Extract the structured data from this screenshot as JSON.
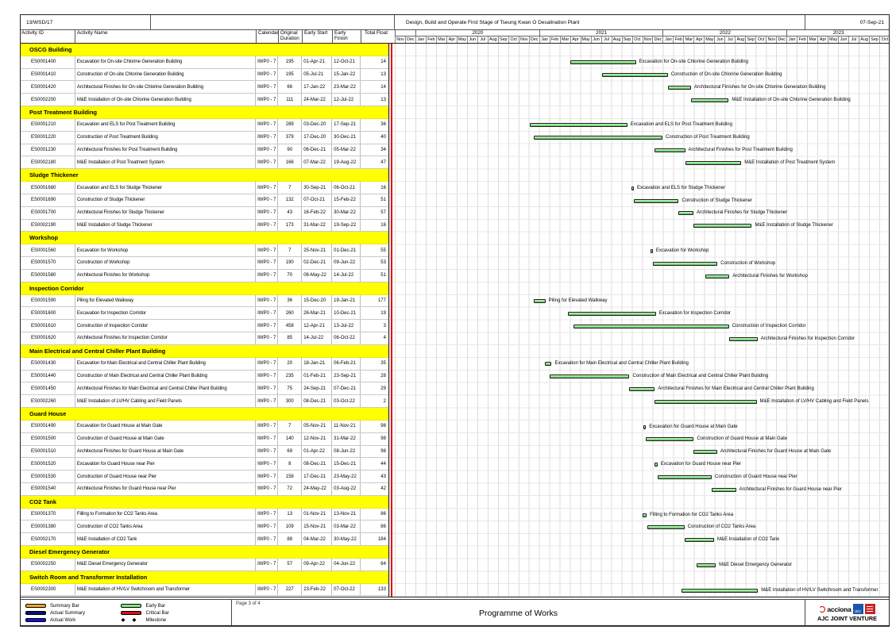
{
  "header": {
    "contract_ref": "13/WSD/17",
    "project_title": "Design, Build and Operate First Stage of Tseung Kwan O Desalination Plant",
    "print_date": "07-Sep-21"
  },
  "table": {
    "columns": [
      "Activity ID",
      "Activity Name",
      "Calendar",
      "Original Duration",
      "Early Start",
      "Early Finish",
      "Total Float"
    ]
  },
  "timescale": {
    "months": [
      "Nov",
      "Dec",
      "Jan",
      "Feb",
      "Mar",
      "Apr",
      "May",
      "Jun",
      "Jul",
      "Aug",
      "Sep",
      "Oct",
      "Nov",
      "Dec",
      "Jan",
      "Feb",
      "Mar",
      "Apr",
      "May",
      "Jun",
      "Jul",
      "Aug",
      "Sep",
      "Oct",
      "Nov",
      "Dec",
      "Jan",
      "Feb",
      "Mar",
      "Apr",
      "May",
      "Jun",
      "Jul",
      "Aug",
      "Sep",
      "Oct",
      "Nov",
      "Dec",
      "Jan",
      "Feb",
      "Mar",
      "Apr",
      "May",
      "Jun",
      "Jul",
      "Aug",
      "Sep",
      "Oct"
    ],
    "month_count": 48,
    "start": "Nov-2019",
    "years": [
      {
        "label": "",
        "span": 2
      },
      {
        "label": "2020",
        "span": 12
      },
      {
        "label": "2021",
        "span": 12
      },
      {
        "label": "2022",
        "span": 12
      },
      {
        "label": "2023",
        "span": 10
      }
    ]
  },
  "rows": [
    {
      "type": "section",
      "label": "OSCG Building"
    },
    {
      "type": "activity",
      "id": "ES0001400",
      "name": "Excavation for On-site Chlorine Generation Building",
      "calendar": "IWP0 - 7",
      "duration": "195",
      "start": "01-Apr-21",
      "finish": "12-Oct-21",
      "float": "14"
    },
    {
      "type": "activity",
      "id": "ES0001410",
      "name": "Construction of On-site Chlorine Generation Building",
      "calendar": "IWP0 - 7",
      "duration": "195",
      "start": "05-Jul-21",
      "finish": "15-Jan-22",
      "float": "13"
    },
    {
      "type": "activity",
      "id": "ES0001420",
      "name": "Architectural Finishes for On-site Chlorine Generation Building",
      "calendar": "IWP0 - 7",
      "duration": "66",
      "start": "17-Jan-22",
      "finish": "23-Mar-22",
      "float": "14"
    },
    {
      "type": "activity",
      "id": "ES0002200",
      "name": "M&E Installation of On-site Chlorine Generation Building",
      "calendar": "IWP0 - 7",
      "duration": "111",
      "start": "24-Mar-22",
      "finish": "12-Jul-22",
      "float": "13"
    },
    {
      "type": "section",
      "label": "Post Treatment Building"
    },
    {
      "type": "activity",
      "id": "ES0001210",
      "name": "Excavation and ELS for Post Treatment Building",
      "calendar": "IWP0 - 7",
      "duration": "289",
      "start": "03-Dec-20",
      "finish": "17-Sep-21",
      "float": "36"
    },
    {
      "type": "activity",
      "id": "ES0001220",
      "name": "Construction of Post Treatment Building",
      "calendar": "IWP0 - 7",
      "duration": "379",
      "start": "17-Dec-20",
      "finish": "30-Dec-21",
      "float": "40"
    },
    {
      "type": "activity",
      "id": "ES0001230",
      "name": "Architectural Finishes for Post Treatment Building",
      "calendar": "IWP0 - 7",
      "duration": "90",
      "start": "06-Dec-21",
      "finish": "05-Mar-22",
      "float": "34"
    },
    {
      "type": "activity",
      "id": "ES0002180",
      "name": "M&E Installation of Post Treatment System",
      "calendar": "IWP0 - 7",
      "duration": "166",
      "start": "07-Mar-22",
      "finish": "19-Aug-22",
      "float": "47"
    },
    {
      "type": "section",
      "label": "Sludge Thickener"
    },
    {
      "type": "activity",
      "id": "ES0001680",
      "name": "Excavation and ELS for Sludge Thickener",
      "calendar": "IWP0 - 7",
      "duration": "7",
      "start": "30-Sep-21",
      "finish": "06-Oct-21",
      "float": "16"
    },
    {
      "type": "activity",
      "id": "ES0001690",
      "name": "Construction of Sludge Thickener",
      "calendar": "IWP0 - 7",
      "duration": "132",
      "start": "07-Oct-21",
      "finish": "15-Feb-22",
      "float": "51"
    },
    {
      "type": "activity",
      "id": "ES0001700",
      "name": "Architectural Finishes for Sludge Thickener",
      "calendar": "IWP0 - 7",
      "duration": "43",
      "start": "16-Feb-22",
      "finish": "30-Mar-22",
      "float": "57"
    },
    {
      "type": "activity",
      "id": "ES0002190",
      "name": "M&E Installation of Sludge Thickener",
      "calendar": "IWP0 - 7",
      "duration": "173",
      "start": "31-Mar-22",
      "finish": "19-Sep-22",
      "float": "16"
    },
    {
      "type": "section",
      "label": "Workshop"
    },
    {
      "type": "activity",
      "id": "ES0001560",
      "name": "Excavation for Workshop",
      "calendar": "IWP0 - 7",
      "duration": "7",
      "start": "25-Nov-21",
      "finish": "01-Dec-21",
      "float": "55"
    },
    {
      "type": "activity",
      "id": "ES0001570",
      "name": "Construction of Workshop",
      "calendar": "IWP0 - 7",
      "duration": "190",
      "start": "02-Dec-21",
      "finish": "09-Jun-22",
      "float": "53"
    },
    {
      "type": "activity",
      "id": "ES0001580",
      "name": "Architectural Finishes for Workshop",
      "calendar": "IWP0 - 7",
      "duration": "70",
      "start": "06-May-22",
      "finish": "14-Jul-22",
      "float": "51"
    },
    {
      "type": "section",
      "label": "Inspection Corridor"
    },
    {
      "type": "activity",
      "id": "ES0001590",
      "name": "Piling for Elevated Walkway",
      "calendar": "IWP0 - 7",
      "duration": "36",
      "start": "15-Dec-20",
      "finish": "19-Jan-21",
      "float": "177"
    },
    {
      "type": "activity",
      "id": "ES0001600",
      "name": "Excavation for Inspection Corridor",
      "calendar": "IWP0 - 7",
      "duration": "260",
      "start": "26-Mar-21",
      "finish": "10-Dec-21",
      "float": "19"
    },
    {
      "type": "activity",
      "id": "ES0001610",
      "name": "Construction of Inspection Corridor",
      "calendar": "IWP0 - 7",
      "duration": "458",
      "start": "12-Apr-21",
      "finish": "13-Jul-22",
      "float": "3"
    },
    {
      "type": "activity",
      "id": "ES0001620",
      "name": "Architectural Finishes for Inspection Corridor",
      "calendar": "IWP0 - 7",
      "duration": "85",
      "start": "14-Jul-22",
      "finish": "06-Oct-22",
      "float": "4"
    },
    {
      "type": "section",
      "label": "Main Electrical and Central Chiller Plant Building"
    },
    {
      "type": "activity",
      "id": "ES0001430",
      "name": "Excavation for Main Electrical and Central Chiller Plant Building",
      "calendar": "IWP0 - 7",
      "duration": "20",
      "start": "18-Jan-21",
      "finish": "06-Feb-21",
      "float": "35"
    },
    {
      "type": "activity",
      "id": "ES0001440",
      "name": "Construction of Main Electrical and Central Chiller Plant Building",
      "calendar": "IWP0 - 7",
      "duration": "235",
      "start": "01-Feb-21",
      "finish": "23-Sep-21",
      "float": "28"
    },
    {
      "type": "activity",
      "id": "ES0001450",
      "name": "Architectural Finishes for Main Electrical and Central Chiller Plant Building",
      "calendar": "IWP0 - 7",
      "duration": "75",
      "start": "24-Sep-21",
      "finish": "07-Dec-21",
      "float": "29"
    },
    {
      "type": "activity",
      "id": "ES0002260",
      "name": "M&E Installation of LV/HV Cabling and Field Panels",
      "calendar": "IWP0 - 7",
      "duration": "300",
      "start": "08-Dec-21",
      "finish": "03-Oct-22",
      "float": "2"
    },
    {
      "type": "section",
      "label": "Guard House"
    },
    {
      "type": "activity",
      "id": "ES0001490",
      "name": "Excavation for Guard House at Main Gate",
      "calendar": "IWP0 - 7",
      "duration": "7",
      "start": "05-Nov-21",
      "finish": "11-Nov-21",
      "float": "98"
    },
    {
      "type": "activity",
      "id": "ES0001500",
      "name": "Construction of Guard House at Main Gate",
      "calendar": "IWP0 - 7",
      "duration": "140",
      "start": "12-Nov-21",
      "finish": "31-Mar-22",
      "float": "98"
    },
    {
      "type": "activity",
      "id": "ES0001510",
      "name": "Architectural Finishes for Guard House at Main Gate",
      "calendar": "IWP0 - 7",
      "duration": "69",
      "start": "01-Apr-22",
      "finish": "08-Jun-22",
      "float": "98"
    },
    {
      "type": "activity",
      "id": "ES0001520",
      "name": "Excavation for Guard House near Pier",
      "calendar": "IWP0 - 7",
      "duration": "8",
      "start": "08-Dec-21",
      "finish": "15-Dec-21",
      "float": "44"
    },
    {
      "type": "activity",
      "id": "ES0001530",
      "name": "Construction of Guard House near Pier",
      "calendar": "IWP0 - 7",
      "duration": "158",
      "start": "17-Dec-21",
      "finish": "23-May-22",
      "float": "43"
    },
    {
      "type": "activity",
      "id": "ES0001540",
      "name": "Architectural Finishes for Guard House near Pier",
      "calendar": "IWP0 - 7",
      "duration": "72",
      "start": "24-May-22",
      "finish": "03-Aug-22",
      "float": "42"
    },
    {
      "type": "section",
      "label": "CO2 Tank"
    },
    {
      "type": "activity",
      "id": "ES0001370",
      "name": "Filling to Formation for CO2 Tanks Area",
      "calendar": "IWP0 - 7",
      "duration": "13",
      "start": "01-Nov-21",
      "finish": "13-Nov-21",
      "float": "86"
    },
    {
      "type": "activity",
      "id": "ES0001380",
      "name": "Construction of CO2 Tanks Area",
      "calendar": "IWP0 - 7",
      "duration": "109",
      "start": "15-Nov-21",
      "finish": "03-Mar-22",
      "float": "86"
    },
    {
      "type": "activity",
      "id": "ES0002170",
      "name": "M&E Installation of CO2 Tank",
      "calendar": "IWP0 - 7",
      "duration": "88",
      "start": "04-Mar-22",
      "finish": "30-May-22",
      "float": "184"
    },
    {
      "type": "section",
      "label": "Diesel Emergency Generator"
    },
    {
      "type": "activity",
      "id": "ES0002250",
      "name": "M&E Diesel Emergency Generator",
      "calendar": "IWP0 - 7",
      "duration": "57",
      "start": "09-Apr-22",
      "finish": "04-Jun-22",
      "float": "64"
    },
    {
      "type": "section",
      "label": "Switch Room and Transformer Installation"
    },
    {
      "type": "activity",
      "id": "ES0002300",
      "name": "M&E Installation of HV/LV Switchroom and Transformer",
      "calendar": "IWP0 - 7",
      "duration": "227",
      "start": "23-Feb-22",
      "finish": "07-Oct-22",
      "float": "133"
    }
  ],
  "footer": {
    "page_label": "Page 3 of 4",
    "document_title": "Programme of Works",
    "legend": {
      "summary_bar": "Summary Bar",
      "actual_summary": "Actual Summary",
      "actual_work": "Actual Work",
      "early_bar": "Early Bar",
      "critical_bar": "Critical Bar",
      "milestone": "Milestone"
    },
    "logos": {
      "acciona": "acciona",
      "jec": "JEC",
      "joint_venture": "AJC JOINT VENTURE"
    }
  },
  "colors": {
    "section_band": "#ffff00",
    "early_bar": "#84e884",
    "critical_bar": "#dd1111",
    "summary_bar": "#f5a623",
    "actual_summary": "#001478",
    "actual_work": "#1414dc",
    "data_date_line": "#dd0000"
  }
}
